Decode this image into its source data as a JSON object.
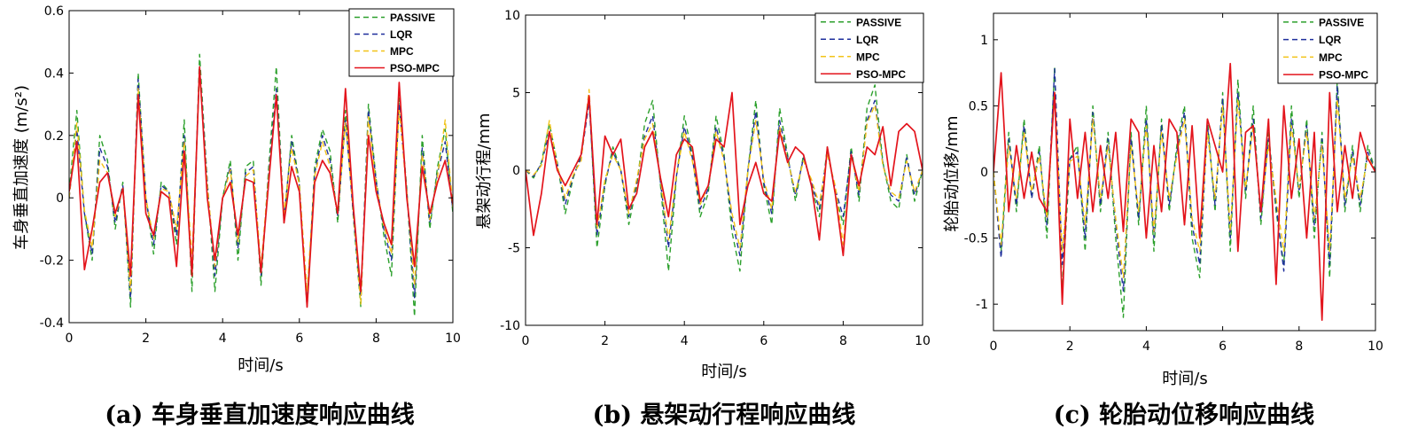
{
  "colors": {
    "PASSIVE": "#2ca02c",
    "LQR": "#1f2f9c",
    "MPC": "#f2c318",
    "PSO-MPC": "#e3141c",
    "axis": "#000000",
    "background": "#ffffff"
  },
  "line_styles": {
    "PASSIVE": "dashed",
    "LQR": "dashed",
    "MPC": "dashed",
    "PSO-MPC": "solid"
  },
  "chart_data": [
    {
      "id": "a",
      "type": "line",
      "caption": "(a) 车身垂直加速度响应曲线",
      "xlabel": "时间/s",
      "ylabel": "车身垂直加速度 (m/s²)",
      "xlim": [
        0,
        10
      ],
      "ylim": [
        -0.4,
        0.6
      ],
      "xticks": [
        0,
        2,
        4,
        6,
        8,
        10
      ],
      "xtick_labels": [
        "0",
        "2",
        "4",
        "6",
        "8",
        "10"
      ],
      "yticks": [
        -0.4,
        -0.2,
        0,
        0.2,
        0.4,
        0.6
      ],
      "ytick_labels": [
        "-0.4",
        "-0.2",
        "0",
        "0.2",
        "0.4",
        "0.6"
      ],
      "legend_position": "top-right",
      "x": [
        0,
        0.2,
        0.4,
        0.6,
        0.8,
        1.0,
        1.2,
        1.4,
        1.6,
        1.8,
        2.0,
        2.2,
        2.4,
        2.6,
        2.8,
        3.0,
        3.2,
        3.4,
        3.6,
        3.8,
        4.0,
        4.2,
        4.4,
        4.6,
        4.8,
        5.0,
        5.2,
        5.4,
        5.6,
        5.8,
        6.0,
        6.2,
        6.4,
        6.6,
        6.8,
        7.0,
        7.2,
        7.4,
        7.6,
        7.8,
        8.0,
        8.2,
        8.4,
        8.6,
        8.8,
        9.0,
        9.2,
        9.4,
        9.6,
        9.8,
        10.0
      ],
      "series": [
        {
          "name": "PASSIVE",
          "values": [
            0.02,
            0.28,
            -0.05,
            -0.2,
            0.2,
            0.12,
            -0.1,
            0.05,
            -0.35,
            0.4,
            0.0,
            -0.18,
            0.05,
            0.02,
            -0.15,
            0.25,
            -0.3,
            0.46,
            0.05,
            -0.3,
            0.0,
            0.12,
            -0.2,
            0.1,
            0.12,
            -0.28,
            0.1,
            0.42,
            -0.08,
            0.2,
            0.05,
            -0.35,
            0.1,
            0.22,
            0.15,
            -0.08,
            0.28,
            -0.05,
            -0.35,
            0.3,
            0.06,
            -0.12,
            -0.25,
            0.32,
            0.03,
            -0.38,
            0.2,
            -0.1,
            0.1,
            0.22,
            -0.05
          ]
        },
        {
          "name": "LQR",
          "values": [
            0.0,
            0.22,
            -0.05,
            -0.18,
            0.16,
            0.1,
            -0.08,
            0.04,
            -0.32,
            0.38,
            0.0,
            -0.15,
            0.04,
            0.02,
            -0.12,
            0.2,
            -0.25,
            0.42,
            0.05,
            -0.25,
            0.0,
            0.1,
            -0.16,
            0.08,
            0.1,
            -0.25,
            0.08,
            0.35,
            -0.06,
            0.18,
            0.04,
            -0.35,
            0.08,
            0.2,
            0.12,
            -0.06,
            0.25,
            -0.04,
            -0.32,
            0.28,
            0.05,
            -0.1,
            -0.2,
            0.3,
            0.02,
            -0.32,
            0.16,
            -0.08,
            0.08,
            0.18,
            -0.04
          ]
        },
        {
          "name": "MPC",
          "values": [
            0.0,
            0.24,
            -0.04,
            -0.16,
            0.12,
            0.08,
            -0.06,
            0.03,
            -0.3,
            0.35,
            0.0,
            -0.13,
            0.03,
            0.02,
            -0.1,
            0.18,
            -0.2,
            0.4,
            0.04,
            -0.22,
            0.0,
            0.09,
            -0.14,
            0.07,
            0.09,
            -0.22,
            0.07,
            0.32,
            -0.05,
            0.16,
            0.04,
            -0.3,
            0.07,
            0.18,
            0.1,
            -0.05,
            0.24,
            -0.03,
            -0.34,
            0.26,
            0.04,
            -0.09,
            -0.18,
            0.28,
            0.02,
            -0.28,
            0.14,
            -0.07,
            0.07,
            0.25,
            -0.03
          ]
        },
        {
          "name": "PSO-MPC",
          "values": [
            0.02,
            0.18,
            -0.23,
            -0.1,
            0.05,
            0.08,
            -0.05,
            0.03,
            -0.25,
            0.33,
            -0.05,
            -0.12,
            0.02,
            0.0,
            -0.22,
            0.15,
            -0.25,
            0.42,
            0.0,
            -0.2,
            0.0,
            0.05,
            -0.12,
            0.06,
            0.05,
            -0.24,
            0.05,
            0.33,
            -0.08,
            0.1,
            0.02,
            -0.35,
            0.05,
            0.12,
            0.08,
            -0.05,
            0.35,
            -0.02,
            -0.3,
            0.2,
            0.02,
            -0.08,
            -0.15,
            0.37,
            0.0,
            -0.22,
            0.1,
            -0.05,
            0.05,
            0.12,
            -0.02
          ]
        }
      ]
    },
    {
      "id": "b",
      "type": "line",
      "caption": "(b) 悬架动行程响应曲线",
      "xlabel": "时间/s",
      "ylabel": "悬架动行程/mm",
      "xlim": [
        0,
        10
      ],
      "ylim": [
        -10,
        10
      ],
      "xticks": [
        0,
        2,
        4,
        6,
        8,
        10
      ],
      "xtick_labels": [
        "0",
        "2",
        "4",
        "6",
        "8",
        "10"
      ],
      "yticks": [
        -10,
        -5,
        0,
        5,
        10
      ],
      "ytick_labels": [
        "-10",
        "-5",
        "0",
        "5",
        "10"
      ],
      "legend_position": "top-right",
      "x": [
        0,
        0.2,
        0.4,
        0.6,
        0.8,
        1.0,
        1.2,
        1.4,
        1.6,
        1.8,
        2.0,
        2.2,
        2.4,
        2.6,
        2.8,
        3.0,
        3.2,
        3.4,
        3.6,
        3.8,
        4.0,
        4.2,
        4.4,
        4.6,
        4.8,
        5.0,
        5.2,
        5.4,
        5.6,
        5.8,
        6.0,
        6.2,
        6.4,
        6.6,
        6.8,
        7.0,
        7.2,
        7.4,
        7.6,
        7.8,
        8.0,
        8.2,
        8.4,
        8.6,
        8.8,
        9.0,
        9.2,
        9.4,
        9.6,
        9.8,
        10.0
      ],
      "series": [
        {
          "name": "PASSIVE",
          "values": [
            0.0,
            -0.5,
            0.5,
            3.0,
            0.5,
            -2.8,
            -0.5,
            1.0,
            4.8,
            -5.0,
            -1.0,
            1.5,
            0.0,
            -3.5,
            -1.0,
            3.0,
            4.5,
            -1.0,
            -6.5,
            -0.5,
            3.5,
            1.0,
            -3.0,
            -1.5,
            3.5,
            1.0,
            -4.0,
            -6.5,
            0.0,
            4.5,
            -1.0,
            -3.5,
            4.0,
            1.0,
            -2.0,
            1.0,
            -1.0,
            -3.0,
            1.5,
            -1.5,
            -3.5,
            1.5,
            -2.0,
            4.0,
            5.5,
            0.5,
            -2.0,
            -2.5,
            1.0,
            -2.0,
            0.0
          ]
        },
        {
          "name": "LQR",
          "values": [
            0.0,
            -0.4,
            0.4,
            2.5,
            0.4,
            -2.2,
            -0.4,
            0.8,
            4.4,
            -4.2,
            -0.8,
            1.2,
            0.0,
            -3.0,
            -0.8,
            2.2,
            3.5,
            -0.8,
            -5.0,
            -0.4,
            2.8,
            0.8,
            -2.5,
            -1.2,
            2.8,
            0.8,
            -3.2,
            -5.5,
            0.0,
            3.8,
            -0.8,
            -2.8,
            3.2,
            0.8,
            -1.6,
            0.8,
            -0.8,
            -2.5,
            1.2,
            -1.2,
            -3.0,
            1.2,
            -1.6,
            3.2,
            4.5,
            0.4,
            -1.6,
            -2.0,
            0.8,
            -1.6,
            0.0
          ]
        },
        {
          "name": "MPC",
          "values": [
            0.0,
            -0.3,
            0.3,
            3.2,
            0.3,
            -1.8,
            -0.3,
            0.6,
            5.2,
            -3.8,
            -0.6,
            1.0,
            0.0,
            -2.8,
            -0.6,
            2.0,
            3.0,
            -0.6,
            -4.5,
            -0.3,
            2.5,
            0.6,
            -2.2,
            -1.0,
            2.5,
            0.6,
            -2.8,
            -5.0,
            0.0,
            3.2,
            -0.6,
            -2.5,
            2.8,
            0.6,
            -1.4,
            0.6,
            -0.6,
            -2.2,
            1.0,
            -1.0,
            -4.8,
            1.0,
            -1.4,
            3.0,
            4.2,
            0.3,
            -1.4,
            -1.8,
            0.6,
            -1.4,
            0.0
          ]
        },
        {
          "name": "PSO-MPC",
          "values": [
            0.0,
            -4.2,
            -1.5,
            2.5,
            0.0,
            -1.0,
            0.0,
            1.0,
            4.8,
            -3.5,
            2.2,
            1.0,
            2.0,
            -2.5,
            -1.5,
            1.5,
            2.5,
            -0.5,
            -3.0,
            1.0,
            2.0,
            1.5,
            -2.0,
            -1.0,
            2.0,
            1.5,
            5.0,
            -3.5,
            -1.0,
            0.5,
            -1.5,
            -2.0,
            2.5,
            0.5,
            1.5,
            1.0,
            -1.0,
            -4.5,
            1.5,
            -1.5,
            -5.5,
            1.0,
            -1.0,
            1.5,
            1.0,
            2.8,
            -1.0,
            2.5,
            3.0,
            2.5,
            0.0
          ]
        }
      ]
    },
    {
      "id": "c",
      "type": "line",
      "caption": "(c) 轮胎动位移响应曲线",
      "xlabel": "时间/s",
      "ylabel": "轮胎动位移/mm",
      "xlim": [
        0,
        10
      ],
      "ylim": [
        -1.2,
        1.2
      ],
      "xticks": [
        0,
        2,
        4,
        6,
        8,
        10
      ],
      "xtick_labels": [
        "0",
        "2",
        "4",
        "6",
        "8",
        "10"
      ],
      "yticks": [
        -1,
        -0.5,
        0,
        0.5,
        1
      ],
      "ytick_labels": [
        "-1",
        "-0.5",
        "0",
        "0.5",
        "1"
      ],
      "legend_position": "top-right",
      "x": [
        0,
        0.2,
        0.4,
        0.6,
        0.8,
        1.0,
        1.2,
        1.4,
        1.6,
        1.8,
        2.0,
        2.2,
        2.4,
        2.6,
        2.8,
        3.0,
        3.2,
        3.4,
        3.6,
        3.8,
        4.0,
        4.2,
        4.4,
        4.6,
        4.8,
        5.0,
        5.2,
        5.4,
        5.6,
        5.8,
        6.0,
        6.2,
        6.4,
        6.6,
        6.8,
        7.0,
        7.2,
        7.4,
        7.6,
        7.8,
        8.0,
        8.2,
        8.4,
        8.6,
        8.8,
        9.0,
        9.2,
        9.4,
        9.6,
        9.8,
        10.0
      ],
      "series": [
        {
          "name": "PASSIVE",
          "values": [
            0.0,
            -0.6,
            0.3,
            -0.3,
            0.4,
            -0.2,
            0.2,
            -0.5,
            0.8,
            -0.9,
            0.1,
            0.2,
            -0.6,
            0.5,
            -0.3,
            0.3,
            -0.5,
            -1.1,
            0.3,
            -0.4,
            0.5,
            -0.6,
            0.4,
            -0.3,
            0.2,
            0.5,
            -0.5,
            -0.8,
            0.4,
            -0.3,
            0.6,
            -0.6,
            0.7,
            -0.2,
            0.5,
            -0.4,
            0.3,
            -0.3,
            -0.7,
            0.5,
            -0.2,
            0.4,
            -0.5,
            0.3,
            -0.8,
            0.7,
            -0.3,
            0.2,
            -0.3,
            0.2,
            0.0
          ]
        },
        {
          "name": "LQR",
          "values": [
            0.0,
            -0.65,
            0.25,
            -0.25,
            0.35,
            -0.2,
            0.15,
            -0.4,
            0.78,
            -0.7,
            0.1,
            0.15,
            -0.5,
            0.45,
            -0.25,
            0.25,
            -0.4,
            -0.9,
            0.25,
            -0.35,
            0.4,
            -0.5,
            0.35,
            -0.25,
            0.15,
            0.45,
            -0.4,
            -0.7,
            0.35,
            -0.25,
            0.55,
            -0.5,
            0.6,
            -0.15,
            0.4,
            -0.35,
            0.25,
            -0.25,
            -0.75,
            0.4,
            -0.15,
            0.35,
            -0.4,
            0.25,
            -0.7,
            0.65,
            -0.25,
            0.15,
            -0.25,
            0.15,
            0.0
          ]
        },
        {
          "name": "MPC",
          "values": [
            0.0,
            -0.55,
            0.2,
            -0.2,
            0.3,
            -0.15,
            0.12,
            -0.35,
            0.6,
            -0.6,
            0.08,
            0.12,
            -0.4,
            0.4,
            -0.2,
            0.2,
            -0.35,
            -0.8,
            0.2,
            -0.3,
            0.35,
            -0.45,
            0.3,
            -0.2,
            0.12,
            0.4,
            -0.35,
            -0.6,
            0.3,
            -0.2,
            0.5,
            -0.45,
            0.55,
            -0.12,
            0.35,
            -0.3,
            0.2,
            -0.2,
            -0.6,
            0.35,
            -0.12,
            0.3,
            -0.35,
            0.2,
            -0.6,
            0.55,
            -0.2,
            0.12,
            -0.2,
            0.12,
            0.0
          ]
        },
        {
          "name": "PSO-MPC",
          "values": [
            0.0,
            0.75,
            -0.3,
            0.2,
            -0.2,
            0.15,
            -0.2,
            -0.3,
            0.6,
            -1.0,
            0.4,
            -0.2,
            0.3,
            -0.3,
            0.2,
            -0.2,
            0.3,
            -0.45,
            0.4,
            0.3,
            -0.5,
            0.2,
            -0.3,
            0.4,
            0.3,
            -0.4,
            0.35,
            -0.5,
            0.4,
            0.2,
            0.0,
            0.82,
            -0.6,
            0.3,
            0.35,
            -0.3,
            0.4,
            -0.85,
            0.5,
            -0.2,
            0.25,
            -0.5,
            0.3,
            -1.12,
            0.6,
            -0.3,
            0.2,
            -0.2,
            0.3,
            0.1,
            0.0
          ]
        }
      ]
    }
  ]
}
